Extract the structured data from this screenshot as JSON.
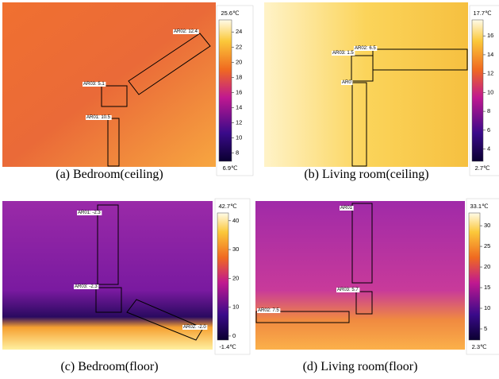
{
  "panels": [
    {
      "caption": "(a) Bedroom(ceiling)",
      "max_label": "25.6℃",
      "min_label": "6.9℃",
      "colorbar_lim": [
        6.9,
        25.6
      ],
      "colorbar_ticks": [
        8,
        10,
        12,
        14,
        16,
        18,
        20,
        22,
        24
      ],
      "regions": [
        {
          "label": "AR02: 12.4"
        },
        {
          "label": "AR03: 5.1"
        },
        {
          "label": "AR01: 10.5"
        }
      ]
    },
    {
      "caption": "(b) Living room(ceiling)",
      "max_label": "17.7℃",
      "min_label": "2.7℃",
      "colorbar_lim": [
        2.7,
        17.7
      ],
      "colorbar_ticks": [
        4,
        6,
        8,
        10,
        12,
        14,
        16
      ],
      "regions": [
        {
          "label": "AR03: 1.5"
        },
        {
          "label": "AR02: 6.5"
        },
        {
          "label": "AR0"
        }
      ]
    },
    {
      "caption": "(c) Bedroom(floor)",
      "max_label": "42.7℃",
      "min_label": "-1.4℃",
      "colorbar_lim": [
        -1.4,
        42.7
      ],
      "colorbar_ticks": [
        0,
        10,
        20,
        30,
        40
      ],
      "regions": [
        {
          "label": "AR01: -2.3"
        },
        {
          "label": "AR03: -2.3"
        },
        {
          "label": "AR02: -2.0"
        }
      ]
    },
    {
      "caption": "(d) Living room(floor)",
      "max_label": "33.1℃",
      "min_label": "2.3℃",
      "colorbar_lim": [
        2.3,
        33.1
      ],
      "colorbar_ticks": [
        5,
        10,
        15,
        20,
        25,
        30
      ],
      "regions": [
        {
          "label": "AR01"
        },
        {
          "label": "AR03: 5.7"
        },
        {
          "label": "AR02: 7.5"
        }
      ]
    }
  ]
}
